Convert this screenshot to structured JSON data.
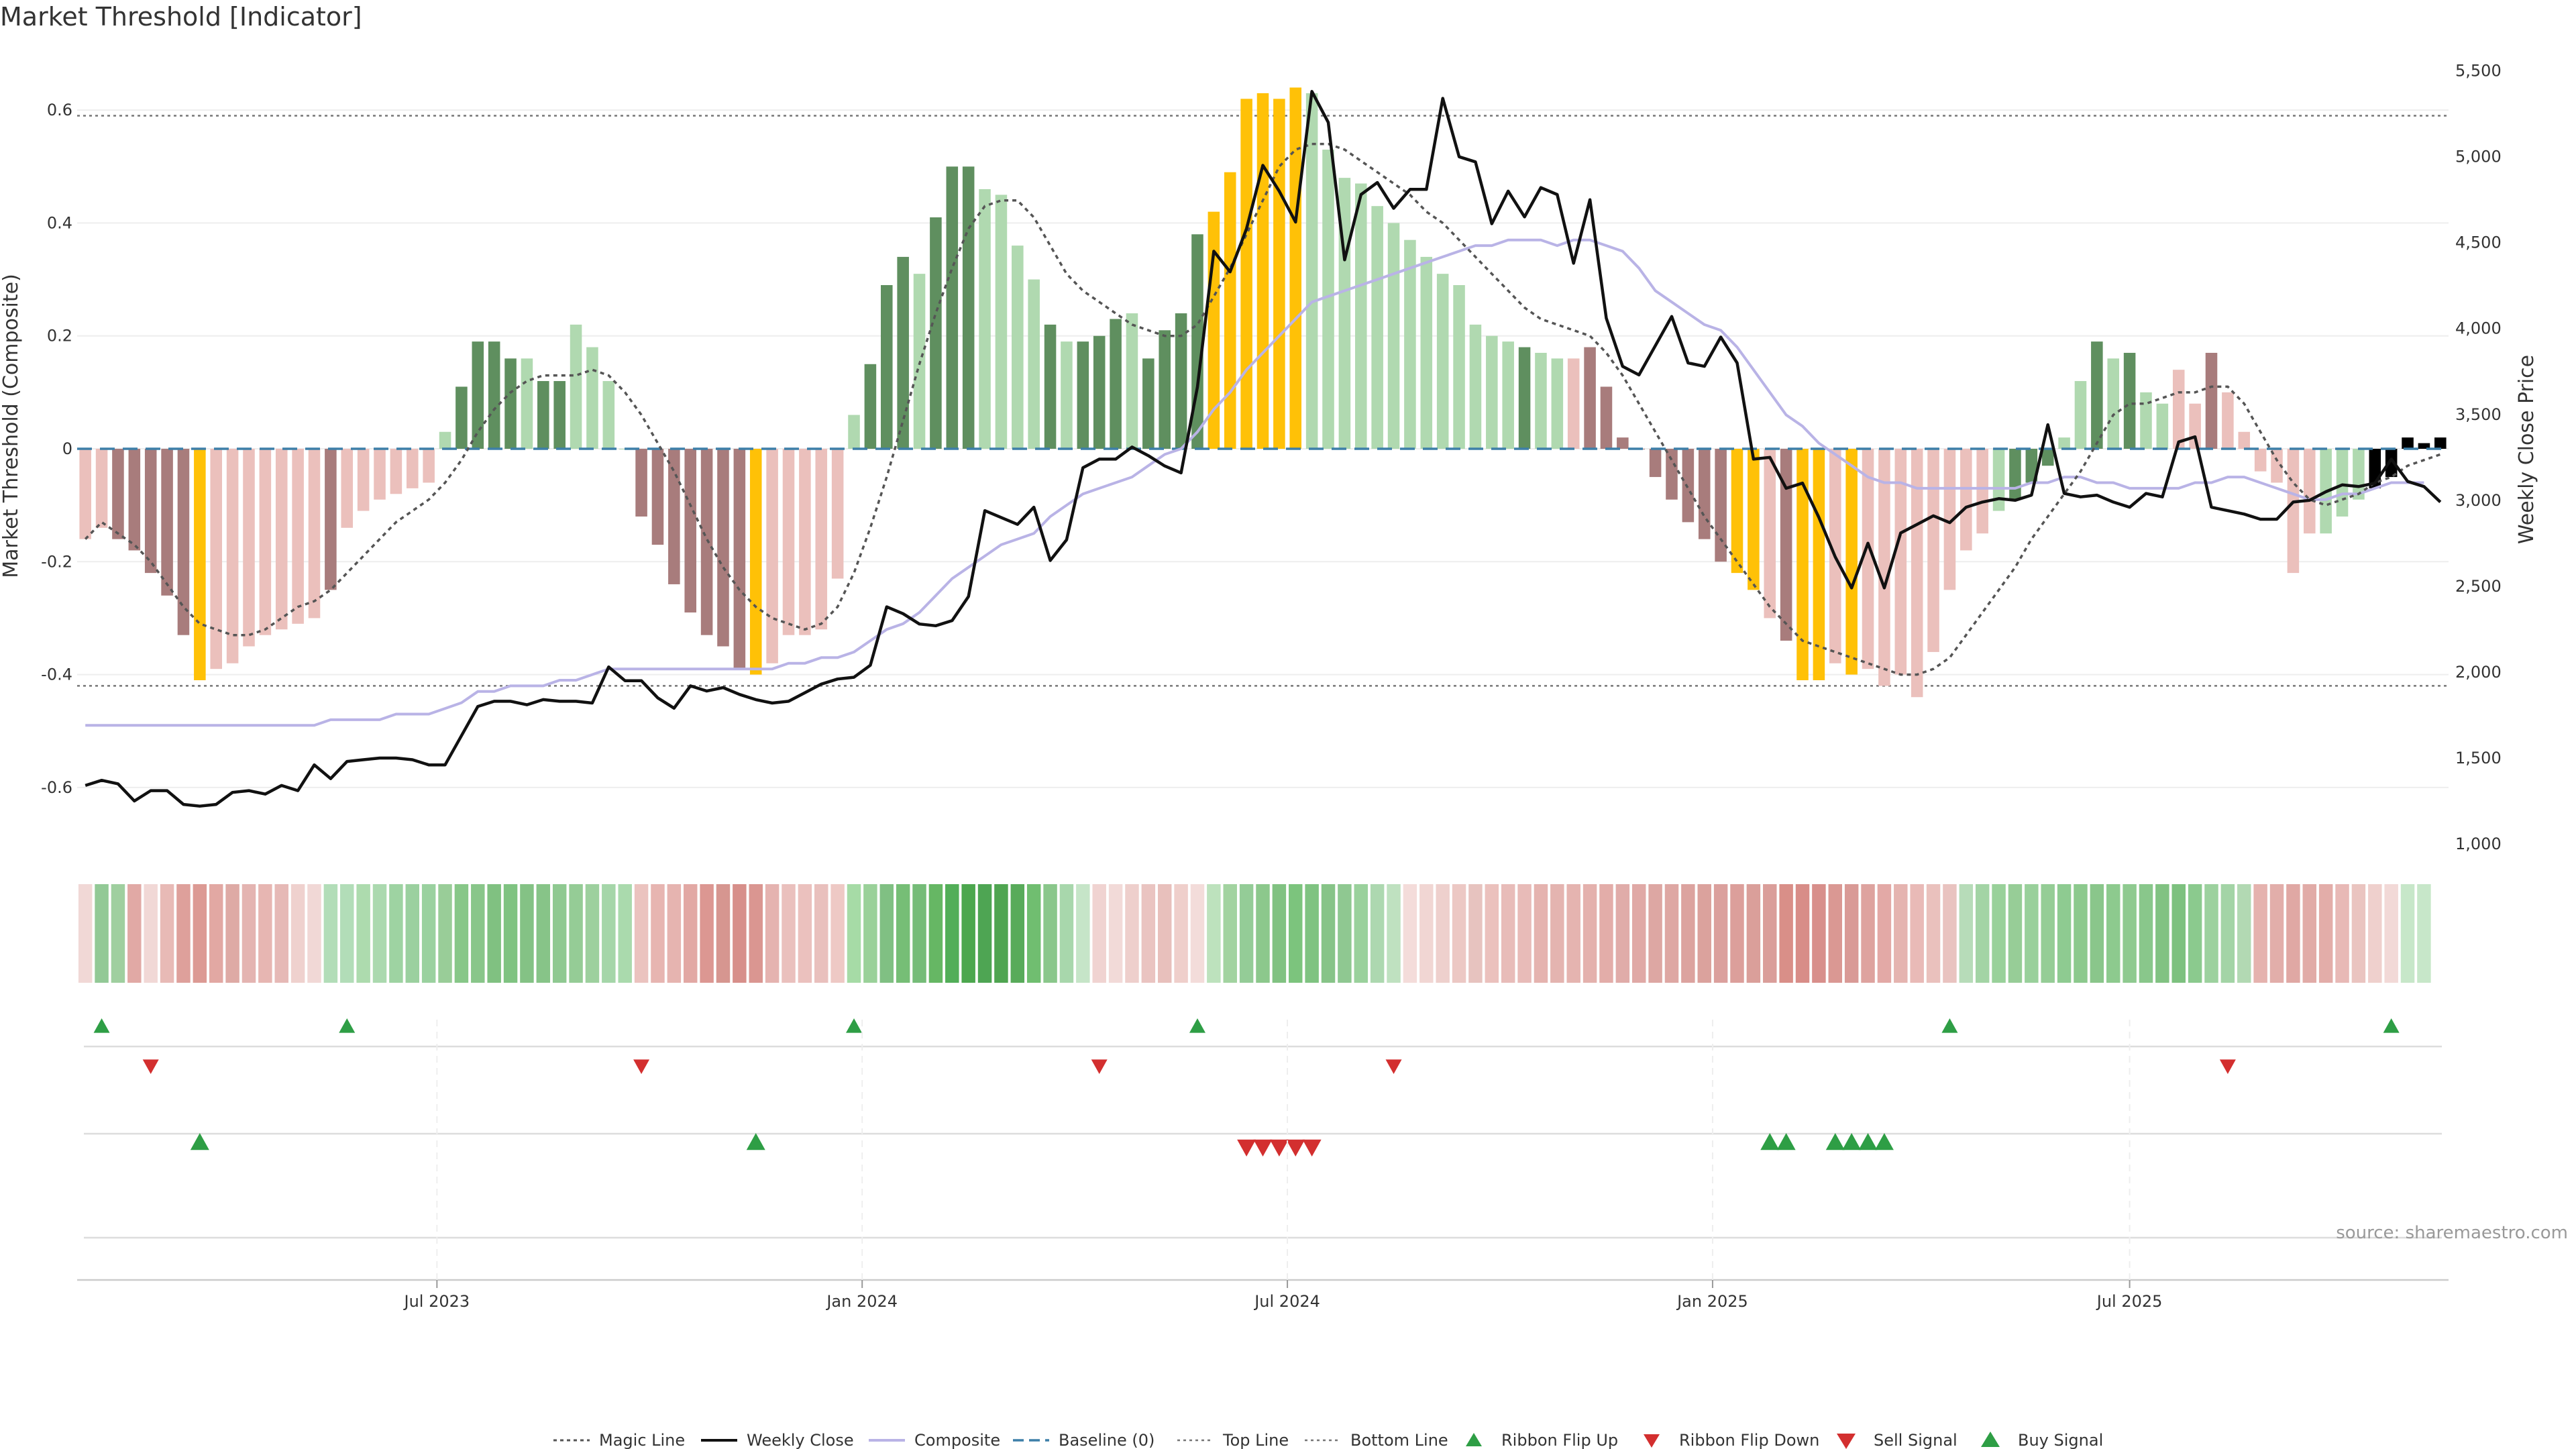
{
  "chart_data": {
    "type": "bar",
    "title": "Market Threshold [Indicator]",
    "ylabel": "Market Threshold (Composite)",
    "y2label": "Weekly Close Price",
    "ylim": [
      -0.7,
      0.7
    ],
    "y2lim": [
      1000,
      5600
    ],
    "y_ticks": [
      "-0.6",
      "-0.4",
      "-0.2",
      "0",
      "0.2",
      "0.4",
      "0.6"
    ],
    "y_tick_values": [
      -0.6,
      -0.4,
      -0.2,
      0,
      0.2,
      0.4,
      0.6
    ],
    "y2_ticks": [
      "1,000",
      "1,500",
      "2,000",
      "2,500",
      "3,000",
      "3,500",
      "4,000",
      "4,500",
      "5,000",
      "5,500"
    ],
    "y2_tick_values": [
      1000,
      1500,
      2000,
      2500,
      3000,
      3500,
      4000,
      4500,
      5000,
      5500
    ],
    "x_ticks": [
      "Jul 2023",
      "Jan 2024",
      "Jul 2024",
      "Jan 2025",
      "Jul 2025"
    ],
    "x_tick_weeks": [
      21.5,
      47.5,
      73.5,
      99.5,
      125
    ],
    "top_line": 0.59,
    "bottom_line": -0.42,
    "baseline": 0,
    "colors": {
      "strong_pos": "#5f8f5f",
      "weak_pos": "#b0d9b0",
      "strong_neg": "#a87c7c",
      "weak_neg": "#ebc0bc",
      "extreme": "#ffc107",
      "weekly_close": "#111111",
      "composite": "#b9b3e6",
      "magic": "#555555",
      "baseline": "#3d7fa8",
      "up_marker": "#2e9e45",
      "down_marker": "#d32f2f"
    },
    "bar_categories": [
      "weak_neg",
      "weak_neg",
      "strong_neg",
      "strong_neg",
      "strong_neg",
      "strong_neg",
      "strong_neg",
      "extreme",
      "weak_neg",
      "weak_neg",
      "weak_neg",
      "weak_neg",
      "weak_neg",
      "weak_neg",
      "weak_neg",
      "strong_neg",
      "weak_neg",
      "weak_neg",
      "weak_neg",
      "weak_neg",
      "weak_neg",
      "weak_neg",
      "weak_pos",
      "strong_pos",
      "strong_pos",
      "strong_pos",
      "strong_pos",
      "weak_pos",
      "strong_pos",
      "strong_pos",
      "weak_pos",
      "weak_pos",
      "weak_pos",
      "weak_pos",
      "strong_neg",
      "strong_neg",
      "strong_neg",
      "strong_neg",
      "strong_neg",
      "strong_neg",
      "strong_neg",
      "extreme",
      "weak_neg",
      "weak_neg",
      "weak_neg",
      "weak_neg",
      "weak_neg",
      "weak_pos",
      "strong_pos",
      "strong_pos",
      "strong_pos",
      "weak_pos",
      "strong_pos",
      "strong_pos",
      "strong_pos",
      "weak_pos",
      "weak_pos",
      "weak_pos",
      "weak_pos",
      "strong_pos",
      "weak_pos",
      "strong_pos",
      "strong_pos",
      "strong_pos",
      "weak_pos",
      "strong_pos",
      "strong_pos",
      "strong_pos",
      "strong_pos",
      "extreme",
      "extreme",
      "extreme",
      "extreme",
      "extreme",
      "extreme",
      "weak_pos",
      "weak_pos",
      "weak_pos",
      "weak_pos",
      "weak_pos",
      "weak_pos",
      "weak_pos",
      "weak_pos",
      "weak_pos",
      "weak_pos",
      "weak_pos",
      "weak_pos",
      "weak_pos",
      "strong_pos",
      "weak_pos",
      "weak_pos",
      "weak_neg",
      "strong_neg",
      "strong_neg",
      "strong_neg",
      "strong_neg",
      "strong_neg",
      "strong_neg",
      "strong_neg",
      "strong_neg",
      "strong_neg",
      "extreme",
      "extreme",
      "weak_neg",
      "strong_neg",
      "extreme",
      "extreme",
      "weak_neg",
      "extreme",
      "weak_neg",
      "weak_neg",
      "weak_neg",
      "weak_neg",
      "weak_neg",
      "weak_neg",
      "weak_neg",
      "weak_neg",
      "weak_pos",
      "strong_pos",
      "strong_pos",
      "strong_pos",
      "weak_pos",
      "weak_pos",
      "strong_pos",
      "weak_pos",
      "strong_pos",
      "weak_pos",
      "weak_pos",
      "weak_neg",
      "weak_neg",
      "strong_neg",
      "weak_neg",
      "weak_neg",
      "weak_neg",
      "weak_neg",
      "weak_neg",
      "weak_neg",
      "weak_pos",
      "weak_pos",
      "weak_pos"
    ],
    "composite_bars": [
      -0.16,
      -0.14,
      -0.16,
      -0.18,
      -0.22,
      -0.26,
      -0.33,
      -0.41,
      -0.39,
      -0.38,
      -0.35,
      -0.33,
      -0.32,
      -0.31,
      -0.3,
      -0.25,
      -0.14,
      -0.11,
      -0.09,
      -0.08,
      -0.07,
      -0.06,
      0.03,
      0.11,
      0.19,
      0.19,
      0.16,
      0.16,
      0.12,
      0.12,
      0.22,
      0.18,
      0.12,
      0.0,
      -0.12,
      -0.17,
      -0.24,
      -0.29,
      -0.33,
      -0.35,
      -0.39,
      -0.4,
      -0.38,
      -0.33,
      -0.33,
      -0.32,
      -0.23,
      0.06,
      0.15,
      0.29,
      0.34,
      0.31,
      0.41,
      0.5,
      0.5,
      0.46,
      0.45,
      0.36,
      0.3,
      0.22,
      0.19,
      0.19,
      0.2,
      0.23,
      0.24,
      0.16,
      0.21,
      0.24,
      0.38,
      0.42,
      0.49,
      0.62,
      0.63,
      0.62,
      0.64,
      0.63,
      0.53,
      0.48,
      0.47,
      0.43,
      0.4,
      0.37,
      0.34,
      0.31,
      0.29,
      0.22,
      0.2,
      0.19,
      0.18,
      0.17,
      0.16,
      0.16,
      0.18,
      0.11,
      0.02,
      0.0,
      -0.05,
      -0.09,
      -0.13,
      -0.16,
      -0.2,
      -0.22,
      -0.25,
      -0.3,
      -0.34,
      -0.41,
      -0.41,
      -0.38,
      -0.4,
      -0.39,
      -0.42,
      -0.4,
      -0.44,
      -0.36,
      -0.25,
      -0.18,
      -0.15,
      -0.11,
      -0.09,
      -0.06,
      -0.03,
      0.02,
      0.12,
      0.19,
      0.16,
      0.17,
      0.1,
      0.08,
      0.14,
      0.08,
      0.17,
      0.1,
      0.03,
      -0.04,
      -0.06,
      -0.22,
      -0.15,
      -0.15,
      -0.12,
      -0.09,
      -0.07,
      -0.05,
      0.02,
      0.01,
      0.02
    ],
    "magic_line": [
      -0.16,
      -0.13,
      -0.15,
      -0.17,
      -0.2,
      -0.24,
      -0.28,
      -0.31,
      -0.32,
      -0.33,
      -0.33,
      -0.32,
      -0.3,
      -0.28,
      -0.27,
      -0.25,
      -0.22,
      -0.19,
      -0.16,
      -0.13,
      -0.11,
      -0.09,
      -0.06,
      -0.02,
      0.03,
      0.07,
      0.1,
      0.12,
      0.13,
      0.13,
      0.13,
      0.14,
      0.13,
      0.1,
      0.06,
      0.01,
      -0.04,
      -0.1,
      -0.16,
      -0.21,
      -0.25,
      -0.28,
      -0.3,
      -0.31,
      -0.32,
      -0.31,
      -0.28,
      -0.22,
      -0.14,
      -0.05,
      0.05,
      0.15,
      0.24,
      0.32,
      0.39,
      0.43,
      0.44,
      0.44,
      0.41,
      0.36,
      0.31,
      0.28,
      0.26,
      0.24,
      0.22,
      0.21,
      0.2,
      0.2,
      0.22,
      0.27,
      0.32,
      0.38,
      0.44,
      0.5,
      0.53,
      0.54,
      0.54,
      0.53,
      0.51,
      0.49,
      0.47,
      0.45,
      0.42,
      0.4,
      0.37,
      0.34,
      0.31,
      0.28,
      0.25,
      0.23,
      0.22,
      0.21,
      0.2,
      0.17,
      0.13,
      0.08,
      0.03,
      -0.02,
      -0.07,
      -0.12,
      -0.16,
      -0.2,
      -0.24,
      -0.28,
      -0.31,
      -0.34,
      -0.35,
      -0.36,
      -0.37,
      -0.38,
      -0.39,
      -0.4,
      -0.4,
      -0.39,
      -0.37,
      -0.33,
      -0.29,
      -0.25,
      -0.21,
      -0.16,
      -0.12,
      -0.08,
      -0.04,
      0.01,
      0.06,
      0.08,
      0.08,
      0.09,
      0.1,
      0.1,
      0.11,
      0.11,
      0.08,
      0.03,
      -0.02,
      -0.06,
      -0.09,
      -0.1,
      -0.09,
      -0.08,
      -0.06,
      -0.05,
      -0.03,
      -0.02,
      -0.01
    ],
    "composite_line": [
      -0.49,
      -0.49,
      -0.49,
      -0.49,
      -0.49,
      -0.49,
      -0.49,
      -0.49,
      -0.49,
      -0.49,
      -0.49,
      -0.49,
      -0.49,
      -0.49,
      -0.49,
      -0.48,
      -0.48,
      -0.48,
      -0.48,
      -0.47,
      -0.47,
      -0.47,
      -0.46,
      -0.45,
      -0.43,
      -0.43,
      -0.42,
      -0.42,
      -0.42,
      -0.41,
      -0.41,
      -0.4,
      -0.39,
      -0.39,
      -0.39,
      -0.39,
      -0.39,
      -0.39,
      -0.39,
      -0.39,
      -0.39,
      -0.39,
      -0.39,
      -0.38,
      -0.38,
      -0.37,
      -0.37,
      -0.36,
      -0.34,
      -0.32,
      -0.31,
      -0.29,
      -0.26,
      -0.23,
      -0.21,
      -0.19,
      -0.17,
      -0.16,
      -0.15,
      -0.12,
      -0.1,
      -0.08,
      -0.07,
      -0.06,
      -0.05,
      -0.03,
      -0.01,
      0.0,
      0.03,
      0.07,
      0.1,
      0.14,
      0.17,
      0.2,
      0.23,
      0.26,
      0.27,
      0.28,
      0.29,
      0.3,
      0.31,
      0.32,
      0.33,
      0.34,
      0.35,
      0.36,
      0.36,
      0.37,
      0.37,
      0.37,
      0.36,
      0.37,
      0.37,
      0.36,
      0.35,
      0.32,
      0.28,
      0.26,
      0.24,
      0.22,
      0.21,
      0.18,
      0.14,
      0.1,
      0.06,
      0.04,
      0.01,
      -0.01,
      -0.03,
      -0.05,
      -0.06,
      -0.06,
      -0.07,
      -0.07,
      -0.07,
      -0.07,
      -0.07,
      -0.07,
      -0.07,
      -0.06,
      -0.06,
      -0.05,
      -0.05,
      -0.06,
      -0.06,
      -0.07,
      -0.07,
      -0.07,
      -0.07,
      -0.06,
      -0.06,
      -0.05,
      -0.05,
      -0.06,
      -0.07,
      -0.08,
      -0.09,
      -0.09,
      -0.08,
      -0.08,
      -0.07,
      -0.06,
      -0.06,
      -0.06
    ],
    "weekly_close": [
      1340,
      1370,
      1350,
      1250,
      1310,
      1310,
      1230,
      1220,
      1230,
      1300,
      1310,
      1290,
      1340,
      1310,
      1460,
      1380,
      1480,
      1490,
      1500,
      1500,
      1490,
      1460,
      1460,
      1630,
      1800,
      1830,
      1830,
      1810,
      1840,
      1830,
      1830,
      1820,
      2030,
      1950,
      1950,
      1850,
      1790,
      1920,
      1890,
      1910,
      1870,
      1840,
      1820,
      1830,
      1880,
      1930,
      1960,
      1970,
      2040,
      2380,
      2340,
      2280,
      2270,
      2300,
      2440,
      2940,
      2900,
      2860,
      2960,
      2650,
      2770,
      3190,
      3240,
      3240,
      3310,
      3260,
      3200,
      3160,
      3660,
      4450,
      4330,
      4580,
      4950,
      4800,
      4620,
      5380,
      5200,
      4400,
      4780,
      4850,
      4700,
      4810,
      4810,
      5340,
      5000,
      4970,
      4610,
      4800,
      4650,
      4820,
      4780,
      4380,
      4750,
      4060,
      3780,
      3730,
      3900,
      4070,
      3800,
      3780,
      3950,
      3800,
      3240,
      3250,
      3070,
      3100,
      2900,
      2670,
      2490,
      2750,
      2490,
      2810,
      2860,
      2910,
      2870,
      2960,
      2990,
      3010,
      3000,
      3030,
      3440,
      3040,
      3020,
      3030,
      2990,
      2960,
      3040,
      3020,
      3340,
      3370,
      2960,
      2940,
      2920,
      2890,
      2890,
      2990,
      3000,
      3050,
      3090,
      3080,
      3100,
      3240,
      3110,
      3080,
      2990
    ],
    "ribbon_colors": [
      "#f1d8d6",
      "#92c996",
      "#9fcf9f",
      "#e1a9a5",
      "#f1d8d6",
      "#e8bab6",
      "#dea09b",
      "#dc9a94",
      "#e2a8a3",
      "#deaaa5",
      "#e4b4b1",
      "#e7b6b2",
      "#e6b9b6",
      "#efd1ce",
      "#f1d8d6",
      "#b2ddb8",
      "#b2ddb8",
      "#addbae",
      "#abd9af",
      "#9ed3a2",
      "#9bd09f",
      "#9ad19f",
      "#99cd98",
      "#87c788",
      "#89c68a",
      "#80c181",
      "#7fc381",
      "#84c285",
      "#87c488",
      "#8fc991",
      "#95cc96",
      "#9dd09e",
      "#a5d6a9",
      "#aadaad",
      "#ebc3bf",
      "#e7b5b1",
      "#e6b4b0",
      "#e2a8a4",
      "#dc9792",
      "#d69690",
      "#d78f8a",
      "#da9691",
      "#e5b3b0",
      "#eac0bd",
      "#ebc1be",
      "#e9c0bd",
      "#eec9c5",
      "#a6dba6",
      "#9ad199",
      "#80c083",
      "#76be76",
      "#75bc78",
      "#66b764",
      "#52ae58",
      "#4ca74e",
      "#4ea553",
      "#4fa551",
      "#58ab5a",
      "#70be70",
      "#8ac78b",
      "#a8d7ac",
      "#c6e5c8",
      "#f0d3d1",
      "#f2dad8",
      "#eecfcc",
      "#eac4c1",
      "#e8c0bc",
      "#efcfcb",
      "#f3dcda",
      "#bde2bd",
      "#a2d3a0",
      "#94cc97",
      "#8cc88c",
      "#81c282",
      "#7cc47d",
      "#7fc381",
      "#87c488",
      "#8fc891",
      "#9ad19c",
      "#add8b0",
      "#bfe1c0",
      "#f4dcda",
      "#f1d6d3",
      "#eed0cd",
      "#ecc8c4",
      "#e7c3bf",
      "#ebc1bd",
      "#e8bcb9",
      "#e8bbb8",
      "#e5b3af",
      "#e4b4b0",
      "#e5b4b0",
      "#e4b1ad",
      "#e3ada9",
      "#e0aca9",
      "#e0a9a6",
      "#dda7a3",
      "#dea7a3",
      "#dca39f",
      "#dba29d",
      "#dba09d",
      "#dc9f9b",
      "#da9f9a",
      "#da9e9a",
      "#d98f88",
      "#d88d88",
      "#d88f8b",
      "#da9893",
      "#d99a96",
      "#dea39f",
      "#e3a9a6",
      "#e5b4b0",
      "#e9bab7",
      "#eac1bd",
      "#e9c3c0",
      "#b7dcb9",
      "#a3d4a5",
      "#99d19a",
      "#97cd97",
      "#99d09b",
      "#95cd96",
      "#8ecb91",
      "#8cc98d",
      "#8ac68b",
      "#8dca8e",
      "#8fca90",
      "#89c78b",
      "#81c282",
      "#7dc17f",
      "#8bca8e",
      "#9cd19e",
      "#a3d4a6",
      "#b2d9b3",
      "#e5b2ae",
      "#e2aeaa",
      "#e0a8a4",
      "#e1aba7",
      "#e3ada9",
      "#e8b9b6",
      "#eac4c0",
      "#efd0cd",
      "#f2d9d7",
      "#c7e7c9",
      "#c7e7c9"
    ],
    "ribbon_flip_up_weeks": [
      1,
      16,
      47,
      68,
      114,
      141
    ],
    "ribbon_flip_down_weeks": [
      4,
      34,
      62,
      80,
      131
    ],
    "buy_signal_weeks": [
      7,
      41,
      103,
      104,
      107,
      108,
      109,
      110
    ],
    "sell_signal_weeks": [
      71,
      72,
      73,
      74,
      75
    ],
    "source": "source: sharemaestro.com",
    "legend": [
      {
        "label": "Magic Line",
        "key": "magic"
      },
      {
        "label": "Weekly Close",
        "key": "close"
      },
      {
        "label": "Composite",
        "key": "composite"
      },
      {
        "label": "Baseline (0)",
        "key": "baseline"
      },
      {
        "label": "Top Line",
        "key": "top"
      },
      {
        "label": "Bottom Line",
        "key": "bottom"
      },
      {
        "label": "Ribbon Flip Up",
        "key": "flipup"
      },
      {
        "label": "Ribbon Flip Down",
        "key": "flipdown"
      },
      {
        "label": "Sell Signal",
        "key": "sell"
      },
      {
        "label": "Buy Signal",
        "key": "buy"
      }
    ]
  }
}
